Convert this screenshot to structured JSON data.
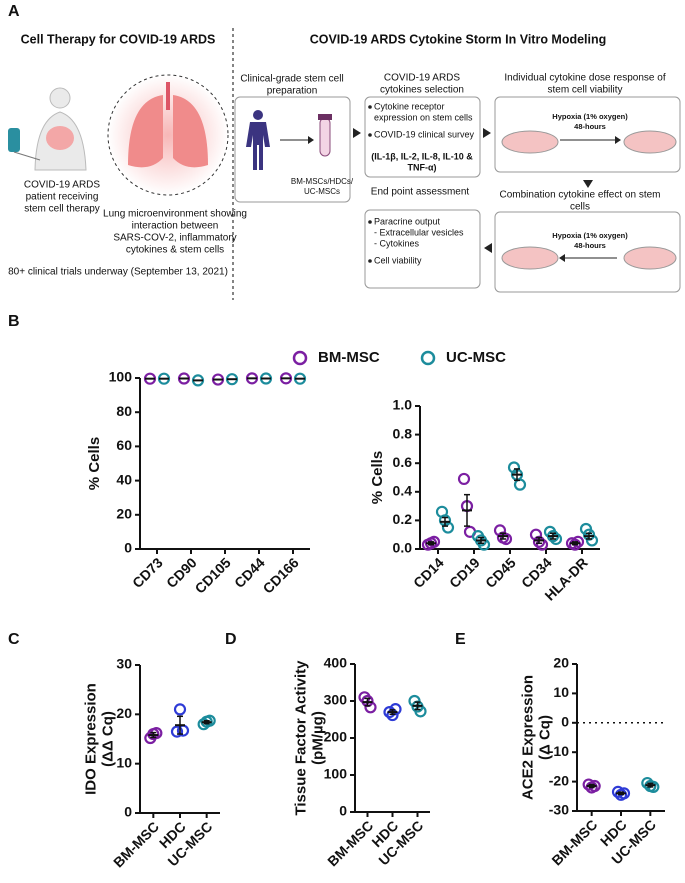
{
  "panel_labels": [
    "A",
    "B",
    "C",
    "D",
    "E"
  ],
  "diagram": {
    "left_title": "Cell Therapy for COVID-19 ARDS",
    "patient_caption": [
      "COVID-19 ARDS",
      "patient receiving",
      "stem cell therapy"
    ],
    "lung_caption": [
      "Lung microenvironment showing",
      "interaction between",
      "SARS-COV-2, inflammatory",
      "cytokines & stem cells"
    ],
    "trials_note": "80+ clinical trials underway (September 13, 2021)",
    "right_title": "COVID-19 ARDS Cytokine Storm In Vitro Modeling",
    "prep_title": [
      "Clinical-grade stem cell",
      "preparation"
    ],
    "prep_caption": [
      "BM-MSCs/HDCs/",
      "UC-MSCs"
    ],
    "selection_title": [
      "COVID-19 ARDS",
      "cytokines selection"
    ],
    "selection_bullet1": [
      "Cytokine receptor",
      "expression on stem cells"
    ],
    "selection_bullet2": "COVID-19 clinical survey",
    "selection_cytokines": [
      "(IL-1β, IL-2, IL-8, IL-10 &",
      "TNF-α)"
    ],
    "individual_title": [
      "Individual cytokine dose response of",
      "stem cell viability"
    ],
    "hypoxia_1": [
      "Hypoxia (1% oxygen)",
      "48-hours"
    ],
    "combination_title": [
      "Combination cytokine effect on stem",
      "cells"
    ],
    "hypoxia_2": [
      "Hypoxia (1% oxygen)",
      "48-hours"
    ],
    "endpoint_title": "End point assessment",
    "endpoint_bullet1": [
      "Paracrine output",
      "- Extracellular vesicles",
      "- Cytokines"
    ],
    "endpoint_bullet2": "Cell viability"
  },
  "chart_data": [
    {
      "type": "dot",
      "ylabel": "% Cells",
      "categories": [
        "CD73",
        "CD90",
        "CD105",
        "CD44",
        "CD166"
      ],
      "ylim": [
        0,
        100
      ],
      "yticks": [
        0,
        20,
        40,
        60,
        80,
        100
      ],
      "series": [
        {
          "name": "BM-MSC",
          "color": "#7b1fa2",
          "values": [
            99.6,
            99.7,
            99.1,
            99.8,
            99.8
          ]
        },
        {
          "name": "UC-MSC",
          "color": "#1c8c9c",
          "values": [
            99.6,
            98.6,
            99.3,
            99.7,
            99.6
          ]
        }
      ]
    },
    {
      "type": "dot",
      "ylabel": "% Cells",
      "categories": [
        "CD14",
        "CD19",
        "CD45",
        "CD34",
        "HLA-DR"
      ],
      "ylim": [
        0,
        1
      ],
      "yticks": [
        {
          "value": 0,
          "label": "0.0"
        },
        0.2,
        0.4,
        0.6,
        0.8,
        {
          "value": 1,
          "label": "1.0"
        }
      ],
      "series": [
        {
          "name": "BM-MSC",
          "color": "#7b1fa2",
          "values": [
            0.04,
            0.27,
            0.09,
            0.06,
            0.04
          ],
          "errors": [
            0.01,
            0.11,
            0.02,
            0.02,
            0.01
          ],
          "points": [
            [
              0.03,
              0.04,
              0.05
            ],
            [
              0.49,
              0.3,
              0.12
            ],
            [
              0.13,
              0.08,
              0.07
            ],
            [
              0.1,
              0.05,
              0.03
            ],
            [
              0.04,
              0.03,
              0.05
            ]
          ]
        },
        {
          "name": "UC-MSC",
          "color": "#1c8c9c",
          "values": [
            0.19,
            0.06,
            0.52,
            0.09,
            0.09
          ],
          "errors": [
            0.03,
            0.02,
            0.04,
            0.02,
            0.02
          ],
          "points": [
            [
              0.26,
              0.2,
              0.15
            ],
            [
              0.09,
              0.06,
              0.03
            ],
            [
              0.57,
              0.52,
              0.45
            ],
            [
              0.12,
              0.09,
              0.07
            ],
            [
              0.14,
              0.1,
              0.06
            ]
          ]
        }
      ]
    },
    {
      "type": "dot",
      "ylabel": [
        "IDO Expression",
        "(ΔΔ Cq)"
      ],
      "categories": [
        "BM-MSC",
        "HDC",
        "UC-MSC"
      ],
      "ylim": [
        0,
        30
      ],
      "yticks": [
        0,
        10,
        20,
        30
      ],
      "series": [
        {
          "colors": [
            "#7b1fa2",
            "#2e3bd6",
            "#1c8c9c"
          ],
          "values": [
            15.8,
            17.8,
            18.4
          ],
          "errors": [
            0.5,
            1.8,
            0.3
          ],
          "points": [
            [
              15.2,
              16,
              16.2
            ],
            [
              16.5,
              21,
              16.7
            ],
            [
              18,
              18.5,
              18.7
            ]
          ]
        }
      ]
    },
    {
      "type": "dot",
      "ylabel": [
        "Tissue Factor Activity",
        "(pM/µg)"
      ],
      "categories": [
        "BM-MSC",
        "HDC",
        "UC-MSC"
      ],
      "ylim": [
        0,
        400
      ],
      "yticks": [
        0,
        100,
        200,
        300,
        400
      ],
      "series": [
        {
          "colors": [
            "#7b1fa2",
            "#2e3bd6",
            "#1c8c9c"
          ],
          "values": [
            297,
            270,
            287
          ],
          "errors": [
            10,
            6,
            10
          ],
          "points": [
            [
              310,
              300,
              283
            ],
            [
              270,
              262,
              278
            ],
            [
              300,
              285,
              272
            ]
          ]
        }
      ]
    },
    {
      "type": "dot",
      "ylabel": [
        "ACE2 Expression",
        "(Δ Cq)"
      ],
      "categories": [
        "BM-MSC",
        "HDC",
        "UC-MSC"
      ],
      "ylim": [
        -30,
        20
      ],
      "yticks": [
        -30,
        -20,
        -10,
        0,
        10,
        20
      ],
      "reference_line": 0,
      "series": [
        {
          "colors": [
            "#7b1fa2",
            "#2e3bd6",
            "#1c8c9c"
          ],
          "values": [
            -21.5,
            -24,
            -21.2
          ],
          "errors": [
            0.5,
            0.4,
            0.6
          ],
          "points": [
            [
              -21,
              -22,
              -21.5
            ],
            [
              -23.5,
              -24.5,
              -24
            ],
            [
              -20.5,
              -21.5,
              -21.8
            ]
          ]
        }
      ]
    }
  ]
}
